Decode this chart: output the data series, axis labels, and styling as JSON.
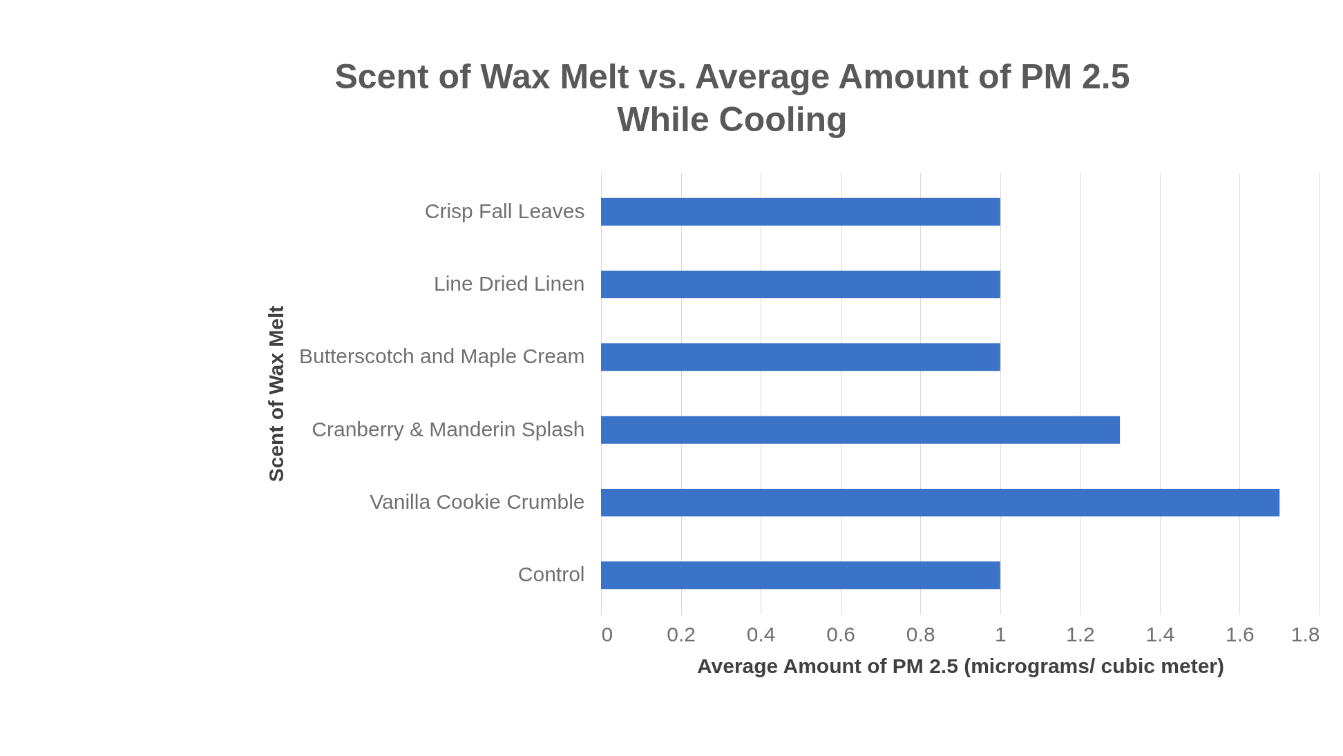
{
  "chart_data": {
    "type": "bar",
    "orientation": "horizontal",
    "title": "Scent of Wax Melt vs. Average Amount of PM 2.5 While Cooling",
    "xlabel": "Average Amount of PM 2.5 (micrograms/ cubic meter)",
    "ylabel": "Scent of Wax Melt",
    "categories": [
      "Crisp Fall Leaves",
      "Line Dried Linen",
      "Butterscotch and Maple Cream",
      "Cranberry & Manderin Splash",
      "Vanilla Cookie Crumble",
      "Control"
    ],
    "values": [
      1,
      1,
      1,
      1.3,
      1.7,
      1
    ],
    "color": "#3a73c8",
    "xlim": [
      0,
      1.8
    ],
    "xticks": [
      0,
      0.2,
      0.4,
      0.6,
      0.8,
      1,
      1.2,
      1.4,
      1.6,
      1.8
    ],
    "grid": "x",
    "legend": false
  }
}
